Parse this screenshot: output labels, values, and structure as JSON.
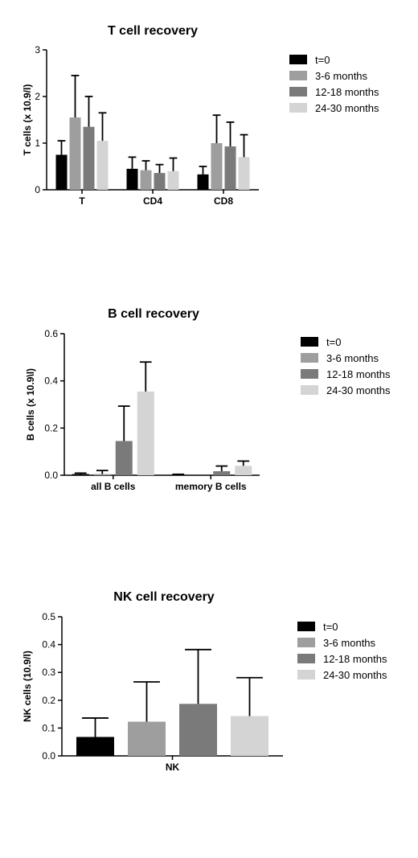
{
  "legend": {
    "series": [
      {
        "name": "t=0",
        "color": "#000000"
      },
      {
        "name": "3-6 months",
        "color": "#9e9e9e"
      },
      {
        "name": "12-18 months",
        "color": "#7a7a7a"
      },
      {
        "name": "24-30 months",
        "color": "#d4d4d4"
      }
    ]
  },
  "chart_data": [
    {
      "type": "bar",
      "title": "T cell recovery",
      "ylabel": "T cells (x 10.9/l)",
      "xlabel": "",
      "ylim": [
        0,
        3
      ],
      "yticks": [
        0,
        1,
        2,
        3
      ],
      "ytick_labels": [
        "0",
        "1",
        "2",
        "3"
      ],
      "categories": [
        "T",
        "CD4",
        "CD8"
      ],
      "series": [
        {
          "name": "t=0",
          "values": [
            0.75,
            0.45,
            0.33
          ],
          "errors": [
            0.3,
            0.25,
            0.17
          ]
        },
        {
          "name": "3-6 months",
          "values": [
            1.55,
            0.42,
            1.0
          ],
          "errors": [
            0.9,
            0.2,
            0.6
          ]
        },
        {
          "name": "12-18 months",
          "values": [
            1.35,
            0.36,
            0.93
          ],
          "errors": [
            0.65,
            0.18,
            0.52
          ]
        },
        {
          "name": "24-30 months",
          "values": [
            1.05,
            0.4,
            0.7
          ],
          "errors": [
            0.6,
            0.28,
            0.48
          ]
        }
      ],
      "grid": false,
      "legend_position": "right"
    },
    {
      "type": "bar",
      "title": "B cell recovery",
      "ylabel": "B cells (x 10.9\\l)",
      "xlabel": "",
      "ylim": [
        0,
        0.6
      ],
      "yticks": [
        0,
        0.2,
        0.4,
        0.6
      ],
      "ytick_labels": [
        "0.0",
        "0.2",
        "0.4",
        "0.6"
      ],
      "categories": [
        "all B cells",
        "memory B cells"
      ],
      "series": [
        {
          "name": "t=0",
          "values": [
            0.005,
            0.002
          ],
          "errors": [
            0.004,
            0.002
          ]
        },
        {
          "name": "3-6 months",
          "values": [
            0.005,
            0.0
          ],
          "errors": [
            0.015,
            0.0
          ]
        },
        {
          "name": "12-18 months",
          "values": [
            0.145,
            0.017
          ],
          "errors": [
            0.148,
            0.022
          ]
        },
        {
          "name": "24-30 months",
          "values": [
            0.355,
            0.04
          ],
          "errors": [
            0.125,
            0.02
          ]
        }
      ],
      "grid": false,
      "legend_position": "right"
    },
    {
      "type": "bar",
      "title": "NK cell recovery",
      "ylabel": "NK cells (10.9/l)",
      "xlabel": "",
      "ylim": [
        0,
        0.5
      ],
      "yticks": [
        0,
        0.1,
        0.2,
        0.3,
        0.4,
        0.5
      ],
      "ytick_labels": [
        "0.0",
        "0.1",
        "0.2",
        "0.3",
        "0.4",
        "0.5"
      ],
      "categories": [
        "NK"
      ],
      "series": [
        {
          "name": "t=0",
          "values": [
            0.068
          ],
          "errors": [
            0.068
          ]
        },
        {
          "name": "3-6 months",
          "values": [
            0.123
          ],
          "errors": [
            0.143
          ]
        },
        {
          "name": "12-18 months",
          "values": [
            0.187
          ],
          "errors": [
            0.195
          ]
        },
        {
          "name": "24-30 months",
          "values": [
            0.143
          ],
          "errors": [
            0.138
          ]
        }
      ],
      "grid": false,
      "legend_position": "right"
    }
  ]
}
